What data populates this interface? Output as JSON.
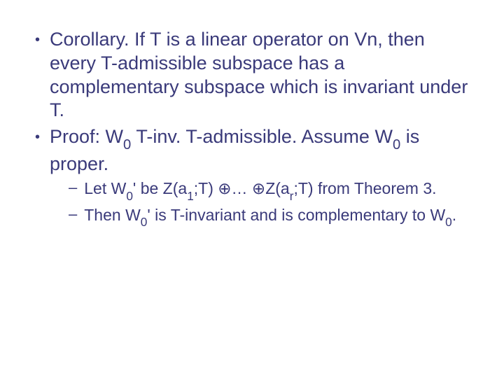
{
  "slide": {
    "text_color": "#3a3a7a",
    "background_color": "#ffffff",
    "bullets": [
      {
        "level": 1,
        "parts": [
          "Corollary. If T is a linear operator on Vn, then every T-admissible subspace has a complementary subspace which is invariant under T."
        ]
      },
      {
        "level": 1,
        "parts": [
          "Proof: W",
          {
            "sub": "0"
          },
          " T-inv. T-admissible. Assume W",
          {
            "sub": "0"
          },
          " is proper."
        ]
      },
      {
        "level": 2,
        "parts": [
          "Let W",
          {
            "sub": "0"
          },
          "' be Z(a",
          {
            "sub": "1"
          },
          ";T) ⊕… ⊕Z(a",
          {
            "sub": "r"
          },
          ";T) from Theorem 3."
        ]
      },
      {
        "level": 2,
        "parts": [
          "Then W",
          {
            "sub": "0"
          },
          "' is T-invariant and is complementary to W",
          {
            "sub": "0"
          },
          "."
        ]
      }
    ]
  }
}
